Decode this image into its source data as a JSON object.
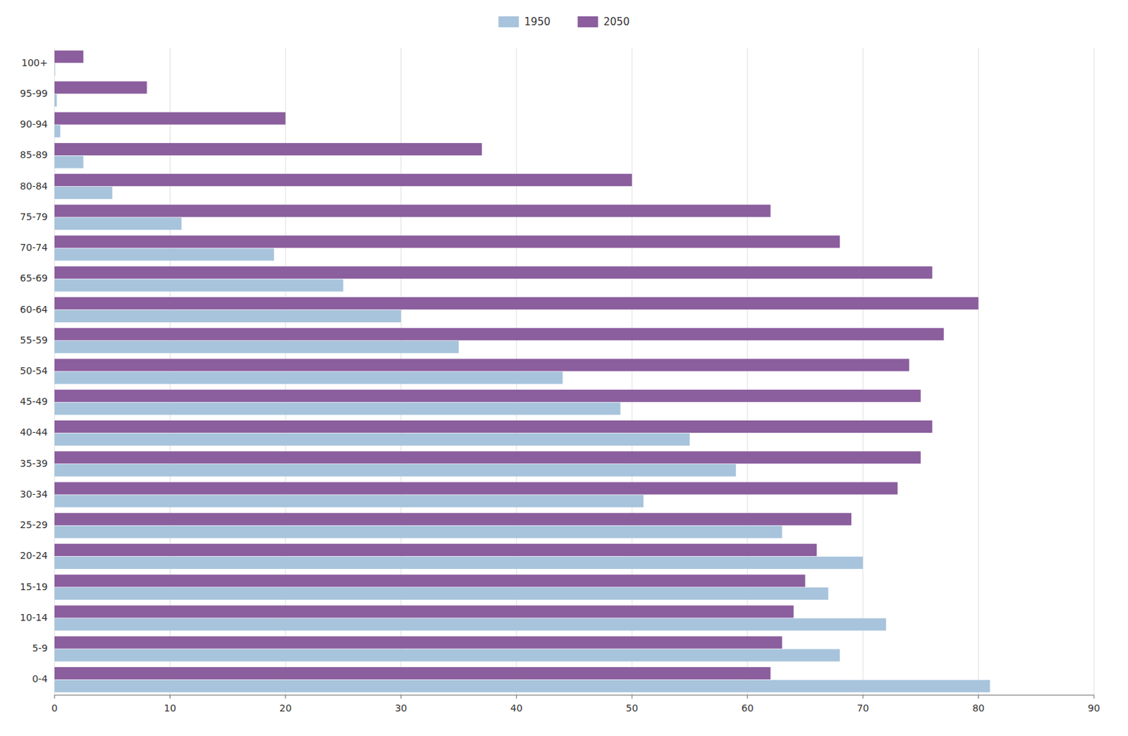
{
  "chart_data": {
    "type": "bar",
    "orientation": "horizontal",
    "categories": [
      "0-4",
      "5-9",
      "10-14",
      "15-19",
      "20-24",
      "25-29",
      "30-34",
      "35-39",
      "40-44",
      "45-49",
      "50-54",
      "55-59",
      "60-64",
      "65-69",
      "70-74",
      "75-79",
      "80-84",
      "85-89",
      "90-94",
      "95-99",
      "100+"
    ],
    "series": [
      {
        "name": "1950",
        "color": "#a8c4dc",
        "values": [
          81,
          68,
          72,
          67,
          70,
          63,
          51,
          59,
          55,
          49,
          44,
          35,
          30,
          25,
          19,
          11,
          5,
          2.5,
          0.5,
          0.2,
          0.05
        ]
      },
      {
        "name": "2050",
        "color": "#8b5e9e",
        "values": [
          62,
          63,
          64,
          65,
          66,
          69,
          73,
          75,
          76,
          75,
          74,
          77,
          80,
          76,
          68,
          62,
          50,
          37,
          20,
          8,
          2.5
        ]
      }
    ],
    "xlim": [
      0,
      90
    ],
    "xticks": [
      0,
      10,
      20,
      30,
      40,
      50,
      60,
      70,
      80,
      90
    ],
    "grid": true,
    "legend": "top"
  }
}
